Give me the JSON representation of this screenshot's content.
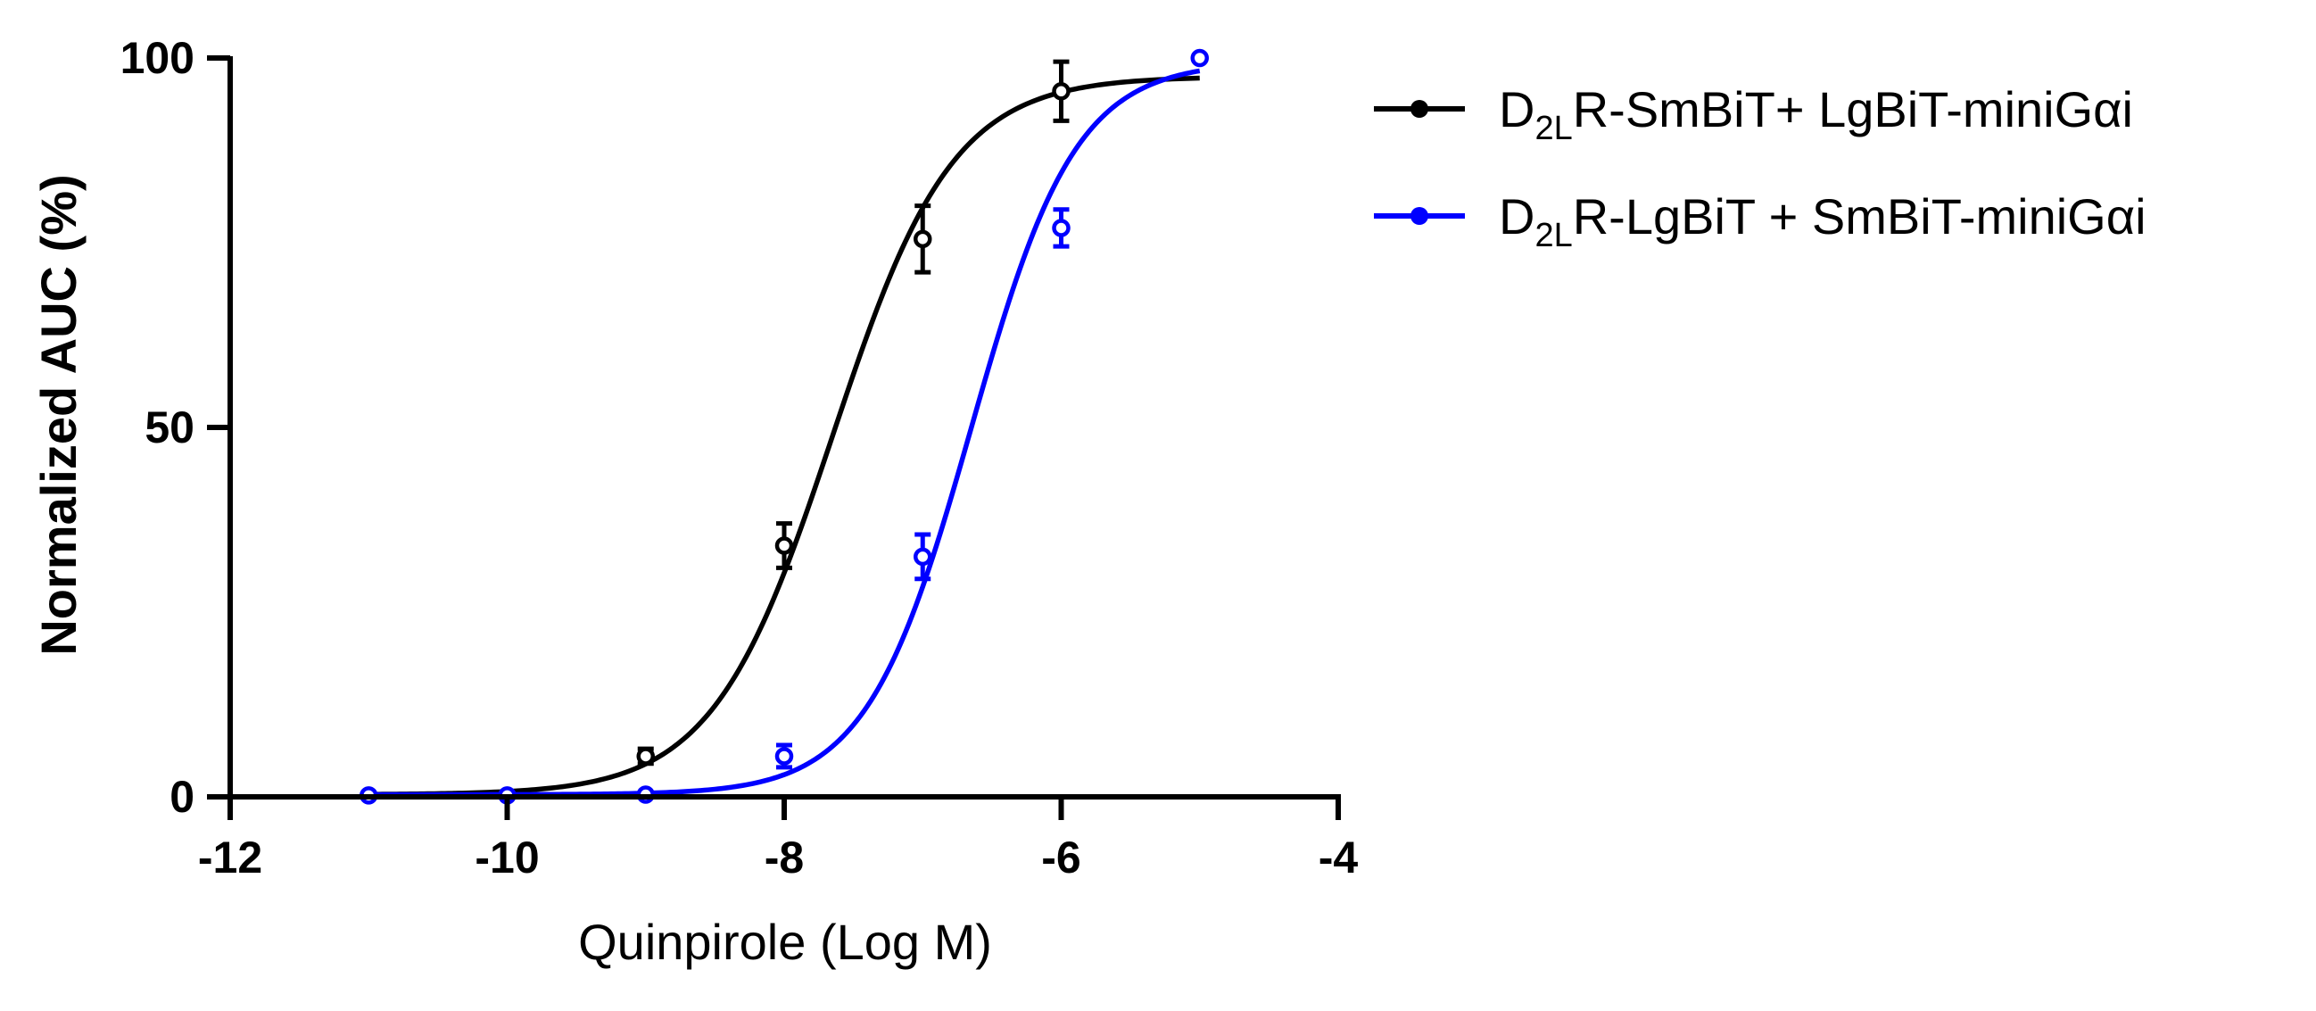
{
  "chart_data": {
    "type": "line",
    "xlabel": "Quinpirole (Log M)",
    "ylabel": "Normalized AUC (%)",
    "xlim": [
      -12,
      -4
    ],
    "ylim": [
      0,
      100
    ],
    "x_ticks": [
      -12,
      -10,
      -8,
      -6,
      -4
    ],
    "y_ticks": [
      0,
      50,
      100
    ],
    "x_tick_labels": [
      "-12",
      "-10",
      "-8",
      "-6",
      "-4"
    ],
    "y_tick_labels": [
      "0",
      "50",
      "100"
    ],
    "grid": false,
    "legend_position": "top-right",
    "series": [
      {
        "name_parts": {
          "prefix": "D",
          "subscript": "2L",
          "rest": "R-SmBiT+ LgBiT-miniGαi"
        },
        "color": "#000000",
        "points": [
          {
            "x": -9,
            "y": 5.5,
            "err": 1.0
          },
          {
            "x": -8,
            "y": 34,
            "err": 3.0
          },
          {
            "x": -7,
            "y": 75.5,
            "err": 4.5
          },
          {
            "x": -6,
            "y": 95.5,
            "err": 4.0
          }
        ],
        "fit": {
          "bottom": 0.3,
          "top": 97.5,
          "logEC50": -7.65,
          "hill": 1.0,
          "x_range": [
            -11,
            -5
          ]
        }
      },
      {
        "name_parts": {
          "prefix": "D",
          "subscript": "2L",
          "rest": "R-LgBiT + SmBiT-miniGαi"
        },
        "color": "#0000ff",
        "points": [
          {
            "x": -11,
            "y": 0.2,
            "err": 0.5
          },
          {
            "x": -10,
            "y": 0.2,
            "err": 0.5
          },
          {
            "x": -9,
            "y": 0.3,
            "err": 0.5
          },
          {
            "x": -8,
            "y": 5.5,
            "err": 1.5
          },
          {
            "x": -7,
            "y": 32.5,
            "err": 3.0
          },
          {
            "x": -6,
            "y": 77,
            "err": 2.5
          },
          {
            "x": -5,
            "y": 100,
            "err": 0.5
          }
        ],
        "fit": {
          "bottom": 0.3,
          "top": 99.5,
          "logEC50": -6.65,
          "hill": 1.15,
          "x_range": [
            -11,
            -5
          ]
        }
      }
    ]
  }
}
